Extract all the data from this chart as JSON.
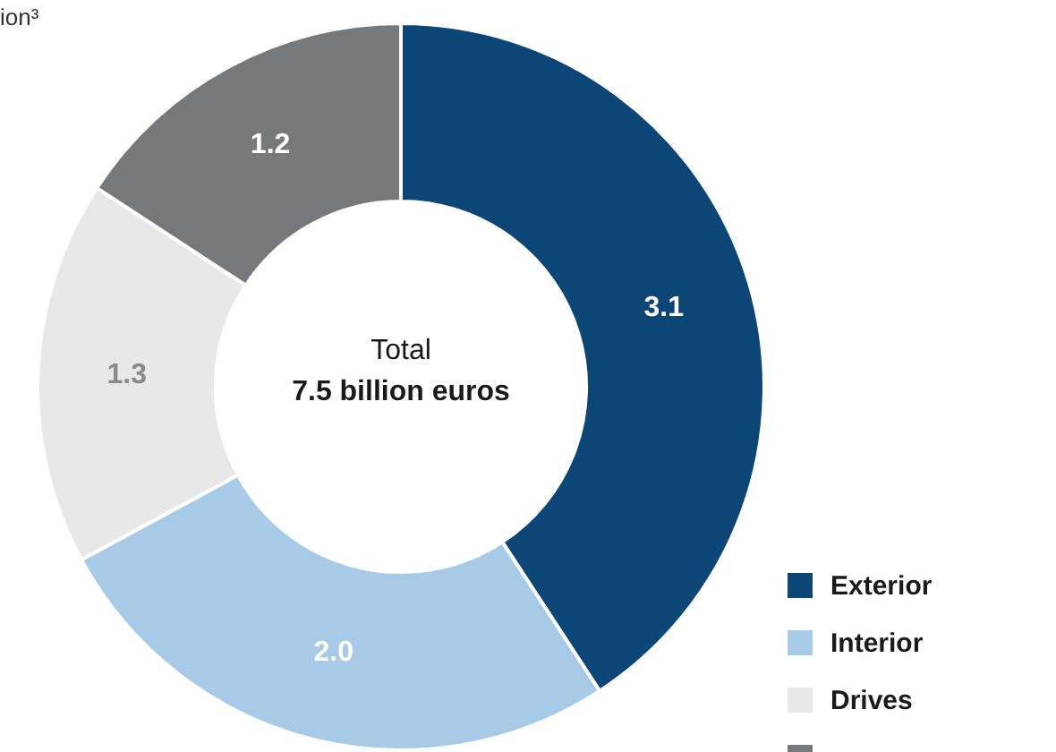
{
  "chart_data": {
    "type": "donut",
    "categories": [
      "Exterior",
      "Interior",
      "Drives",
      null
    ],
    "values": [
      3.1,
      2.0,
      1.3,
      1.2
    ],
    "colors": [
      "#0b4677",
      "#a7cbe6",
      "#e8e8e8",
      "#76797c"
    ],
    "value_labels": [
      "3.1",
      "2.0",
      "1.3",
      "1.2"
    ],
    "legend": "bottom right",
    "annotations": [
      "ion³",
      "Total",
      "7.5 billion euros"
    ]
  }
}
